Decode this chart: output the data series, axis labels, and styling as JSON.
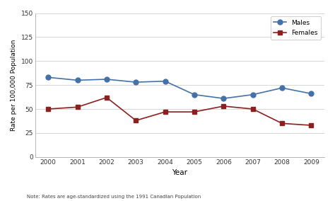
{
  "years": [
    2000,
    2001,
    2002,
    2003,
    2004,
    2005,
    2006,
    2007,
    2008,
    2009
  ],
  "males": [
    83,
    80,
    81,
    78,
    79,
    65,
    61,
    65,
    72,
    66
  ],
  "females": [
    50,
    52,
    62,
    38,
    47,
    47,
    53,
    50,
    35,
    33
  ],
  "males_color": "#4472a8",
  "females_color": "#8b2020",
  "males_label": "Males",
  "females_label": "Females",
  "ylabel": "Rate per 100,000 Population",
  "xlabel": "Year",
  "note": "Note: Rates are age-standardized using the 1991 Canadian Population",
  "ylim": [
    0,
    150
  ],
  "yticks": [
    0,
    25,
    50,
    75,
    100,
    125,
    150
  ],
  "bg_color": "#ffffff",
  "grid_color": "#d0d0d0"
}
